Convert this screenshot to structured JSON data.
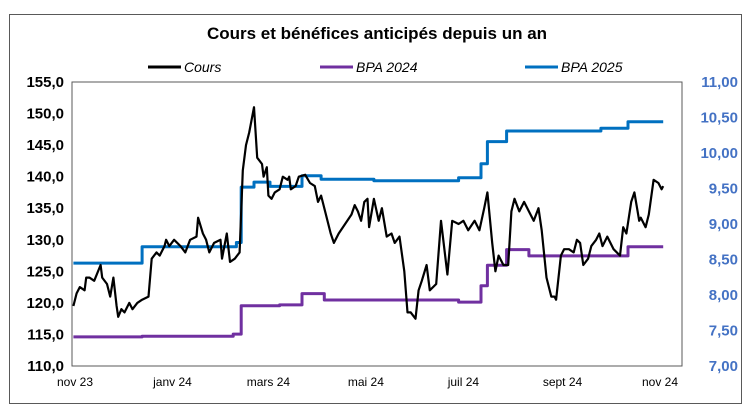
{
  "chart_data": {
    "type": "line",
    "title": "Cours et bénéfices anticipés depuis un an",
    "legend_position": "top",
    "grid": false,
    "x_ticks": [
      "nov 23",
      "janv 24",
      "mars 24",
      "mai 24",
      "juil 24",
      "sept 24",
      "nov 24"
    ],
    "x_tick_dates": [
      "2023-11-01",
      "2024-01-01",
      "2024-03-01",
      "2024-05-01",
      "2024-07-01",
      "2024-09-01",
      "2024-11-01"
    ],
    "y_left": {
      "range": [
        110,
        155
      ],
      "ticks": [
        "110,0",
        "115,0",
        "120,0",
        "125,0",
        "130,0",
        "135,0",
        "140,0",
        "145,0",
        "150,0",
        "155,0"
      ]
    },
    "y_right": {
      "range": [
        7,
        11
      ],
      "ticks": [
        "7,00",
        "7,50",
        "8,00",
        "8,50",
        "9,00",
        "9,50",
        "10,00",
        "10,50",
        "11,00"
      ],
      "color": "#4472C4"
    },
    "series": [
      {
        "name": "Cours",
        "axis": "left",
        "color": "#000000",
        "step": false,
        "points": [
          [
            "2023-10-31",
            119.5
          ],
          [
            "2023-11-02",
            121.5
          ],
          [
            "2023-11-04",
            122.5
          ],
          [
            "2023-11-07",
            122
          ],
          [
            "2023-11-08",
            124
          ],
          [
            "2023-11-10",
            124
          ],
          [
            "2023-11-13",
            123.5
          ],
          [
            "2023-11-17",
            126
          ],
          [
            "2023-11-18",
            124
          ],
          [
            "2023-11-21",
            123
          ],
          [
            "2023-11-23",
            121
          ],
          [
            "2023-11-25",
            124
          ],
          [
            "2023-11-27",
            119.5
          ],
          [
            "2023-11-28",
            117.8
          ],
          [
            "2023-11-30",
            119
          ],
          [
            "2023-12-02",
            118.5
          ],
          [
            "2023-12-05",
            120
          ],
          [
            "2023-12-07",
            119
          ],
          [
            "2023-12-10",
            120
          ],
          [
            "2023-12-13",
            120.5
          ],
          [
            "2023-12-17",
            121
          ],
          [
            "2023-12-19",
            127
          ],
          [
            "2023-12-22",
            128
          ],
          [
            "2023-12-24",
            127.5
          ],
          [
            "2023-12-27",
            129
          ],
          [
            "2023-12-28",
            130
          ],
          [
            "2023-12-30",
            129
          ],
          [
            "2024-01-02",
            130
          ],
          [
            "2024-01-06",
            129
          ],
          [
            "2024-01-09",
            128
          ],
          [
            "2024-01-12",
            130
          ],
          [
            "2024-01-16",
            130.5
          ],
          [
            "2024-01-17",
            133.5
          ],
          [
            "2024-01-20",
            131
          ],
          [
            "2024-01-22",
            130
          ],
          [
            "2024-01-24",
            128
          ],
          [
            "2024-01-27",
            129.5
          ],
          [
            "2024-01-31",
            130
          ],
          [
            "2024-02-01",
            127
          ],
          [
            "2024-02-04",
            131
          ],
          [
            "2024-02-06",
            126.5
          ],
          [
            "2024-02-09",
            127
          ],
          [
            "2024-02-12",
            128
          ],
          [
            "2024-02-14",
            141
          ],
          [
            "2024-02-16",
            145
          ],
          [
            "2024-02-18",
            147
          ],
          [
            "2024-02-21",
            151
          ],
          [
            "2024-02-23",
            143
          ],
          [
            "2024-02-26",
            142
          ],
          [
            "2024-02-27",
            140
          ],
          [
            "2024-02-29",
            141.5
          ],
          [
            "2024-03-01",
            137
          ],
          [
            "2024-03-03",
            136.5
          ],
          [
            "2024-03-05",
            137.5
          ],
          [
            "2024-03-08",
            138
          ],
          [
            "2024-03-10",
            140
          ],
          [
            "2024-03-13",
            139.5
          ],
          [
            "2024-03-14",
            140
          ],
          [
            "2024-03-15",
            138
          ],
          [
            "2024-03-18",
            138.5
          ],
          [
            "2024-03-20",
            140
          ],
          [
            "2024-03-24",
            140.3
          ],
          [
            "2024-03-27",
            139
          ],
          [
            "2024-03-30",
            138.5
          ],
          [
            "2024-04-01",
            136
          ],
          [
            "2024-04-03",
            137
          ],
          [
            "2024-04-06",
            134
          ],
          [
            "2024-04-09",
            131
          ],
          [
            "2024-04-11",
            129.5
          ],
          [
            "2024-04-14",
            131
          ],
          [
            "2024-04-18",
            132.5
          ],
          [
            "2024-04-22",
            134
          ],
          [
            "2024-04-24",
            135.5
          ],
          [
            "2024-04-26",
            134.5
          ],
          [
            "2024-04-28",
            133
          ],
          [
            "2024-04-30",
            136
          ],
          [
            "2024-05-02",
            136.5
          ],
          [
            "2024-05-03",
            132
          ],
          [
            "2024-05-06",
            136.5
          ],
          [
            "2024-05-09",
            133
          ],
          [
            "2024-05-11",
            135
          ],
          [
            "2024-05-14",
            130.5
          ],
          [
            "2024-05-17",
            131
          ],
          [
            "2024-05-19",
            129.5
          ],
          [
            "2024-05-22",
            130.5
          ],
          [
            "2024-05-25",
            125
          ],
          [
            "2024-05-27",
            118.5
          ],
          [
            "2024-05-29",
            118.5
          ],
          [
            "2024-06-01",
            117.5
          ],
          [
            "2024-06-03",
            122
          ],
          [
            "2024-06-05",
            123.5
          ],
          [
            "2024-06-08",
            126
          ],
          [
            "2024-06-10",
            122
          ],
          [
            "2024-06-14",
            123
          ],
          [
            "2024-06-17",
            133
          ],
          [
            "2024-06-21",
            124.5
          ],
          [
            "2024-06-24",
            133
          ],
          [
            "2024-06-28",
            132.5
          ],
          [
            "2024-07-01",
            133
          ],
          [
            "2024-07-04",
            131.5
          ],
          [
            "2024-07-08",
            133
          ],
          [
            "2024-07-11",
            131.5
          ],
          [
            "2024-07-14",
            135
          ],
          [
            "2024-07-16",
            137.5
          ],
          [
            "2024-07-19",
            129.5
          ],
          [
            "2024-07-21",
            125
          ],
          [
            "2024-07-23",
            127.5
          ],
          [
            "2024-07-26",
            126
          ],
          [
            "2024-07-29",
            126
          ],
          [
            "2024-07-31",
            134.5
          ],
          [
            "2024-08-02",
            136.5
          ],
          [
            "2024-08-05",
            134.5
          ],
          [
            "2024-08-08",
            136
          ],
          [
            "2024-08-11",
            134.5
          ],
          [
            "2024-08-14",
            133
          ],
          [
            "2024-08-17",
            135
          ],
          [
            "2024-08-19",
            131.5
          ],
          [
            "2024-08-22",
            124
          ],
          [
            "2024-08-25",
            121
          ],
          [
            "2024-08-27",
            121
          ],
          [
            "2024-08-28",
            120.5
          ],
          [
            "2024-08-31",
            127.5
          ],
          [
            "2024-09-02",
            128.5
          ],
          [
            "2024-09-05",
            128.5
          ],
          [
            "2024-09-08",
            128
          ],
          [
            "2024-09-10",
            130
          ],
          [
            "2024-09-12",
            129.5
          ],
          [
            "2024-09-14",
            126
          ],
          [
            "2024-09-17",
            127
          ],
          [
            "2024-09-19",
            129
          ],
          [
            "2024-09-22",
            130
          ],
          [
            "2024-09-24",
            131
          ],
          [
            "2024-09-26",
            129
          ],
          [
            "2024-09-29",
            130.5
          ],
          [
            "2024-10-03",
            128.5
          ],
          [
            "2024-10-07",
            127.5
          ],
          [
            "2024-10-09",
            132
          ],
          [
            "2024-10-11",
            131
          ],
          [
            "2024-10-14",
            136
          ],
          [
            "2024-10-16",
            137.5
          ],
          [
            "2024-10-19",
            133
          ],
          [
            "2024-10-20",
            133.5
          ],
          [
            "2024-10-23",
            132
          ],
          [
            "2024-10-25",
            134
          ],
          [
            "2024-10-28",
            139.5
          ],
          [
            "2024-10-31",
            139
          ],
          [
            "2024-11-02",
            138
          ],
          [
            "2024-11-03",
            138.5
          ]
        ]
      },
      {
        "name": "BPA 2024",
        "axis": "right",
        "color": "#7030A0",
        "step": true,
        "points": [
          [
            "2023-10-31",
            7.41
          ],
          [
            "2023-12-13",
            7.42
          ],
          [
            "2024-02-08",
            7.45
          ],
          [
            "2024-02-13",
            7.85
          ],
          [
            "2024-03-08",
            7.86
          ],
          [
            "2024-03-22",
            8.02
          ],
          [
            "2024-04-05",
            7.93
          ],
          [
            "2024-06-28",
            7.9
          ],
          [
            "2024-07-12",
            8.13
          ],
          [
            "2024-07-16",
            8.42
          ],
          [
            "2024-07-28",
            8.64
          ],
          [
            "2024-08-11",
            8.55
          ],
          [
            "2024-10-12",
            8.68
          ],
          [
            "2024-11-03",
            8.68
          ]
        ]
      },
      {
        "name": "BPA 2025",
        "axis": "right",
        "color": "#0070C0",
        "step": true,
        "points": [
          [
            "2023-10-31",
            8.45
          ],
          [
            "2023-12-13",
            8.68
          ],
          [
            "2024-02-10",
            8.74
          ],
          [
            "2024-02-13",
            9.52
          ],
          [
            "2024-02-21",
            9.59
          ],
          [
            "2024-03-02",
            9.53
          ],
          [
            "2024-03-22",
            9.68
          ],
          [
            "2024-04-03",
            9.63
          ],
          [
            "2024-05-06",
            9.61
          ],
          [
            "2024-06-28",
            9.65
          ],
          [
            "2024-07-12",
            9.85
          ],
          [
            "2024-07-16",
            10.16
          ],
          [
            "2024-07-28",
            10.31
          ],
          [
            "2024-09-25",
            10.35
          ],
          [
            "2024-10-12",
            10.44
          ],
          [
            "2024-11-03",
            10.44
          ]
        ]
      }
    ]
  }
}
